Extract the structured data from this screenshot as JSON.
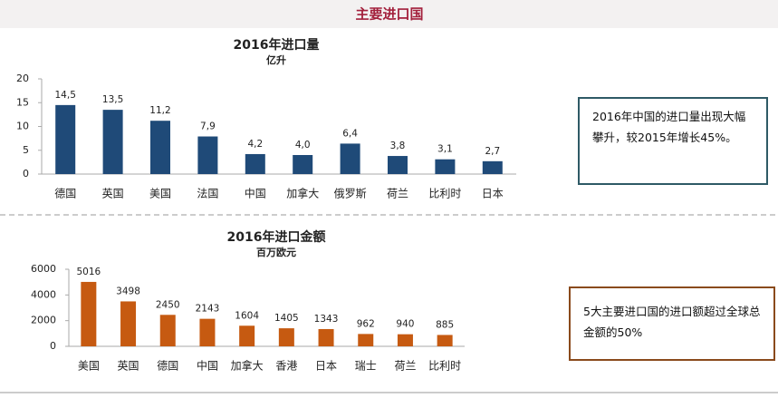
{
  "header": {
    "title": "主要进口国"
  },
  "notes": [
    "2016年中国的进口量出现大幅攀升，较2015年增长45%。",
    "5大主要进口国的进口额超过全球总金额的50%"
  ],
  "chart_data": [
    {
      "type": "bar",
      "title": "2016年进口量",
      "subtitle": "亿升",
      "categories": [
        "德国",
        "英国",
        "美国",
        "法国",
        "中国",
        "加拿大",
        "俄罗斯",
        "荷兰",
        "比利时",
        "日本"
      ],
      "values": [
        14.5,
        13.5,
        11.2,
        7.9,
        4.2,
        4.0,
        6.4,
        3.8,
        3.1,
        2.7
      ],
      "value_labels": [
        "14,5",
        "13,5",
        "11,2",
        "7,9",
        "4,2",
        "4,0",
        "6,4",
        "3,8",
        "3,1",
        "2,7"
      ],
      "color": "#1f4a78",
      "ylim": [
        0,
        20
      ],
      "yticks": [
        0,
        5,
        10,
        15,
        20
      ],
      "grid": false
    },
    {
      "type": "bar",
      "title": "2016年进口金额",
      "subtitle": "百万欧元",
      "categories": [
        "美国",
        "英国",
        "德国",
        "中国",
        "加拿大",
        "香港",
        "日本",
        "瑞士",
        "荷兰",
        "比利时"
      ],
      "values": [
        5016,
        3498,
        2450,
        2143,
        1604,
        1405,
        1343,
        962,
        940,
        885
      ],
      "color": "#c65a11",
      "ylim": [
        0,
        6000
      ],
      "yticks": [
        0,
        2000,
        4000,
        6000
      ],
      "grid": false
    }
  ]
}
